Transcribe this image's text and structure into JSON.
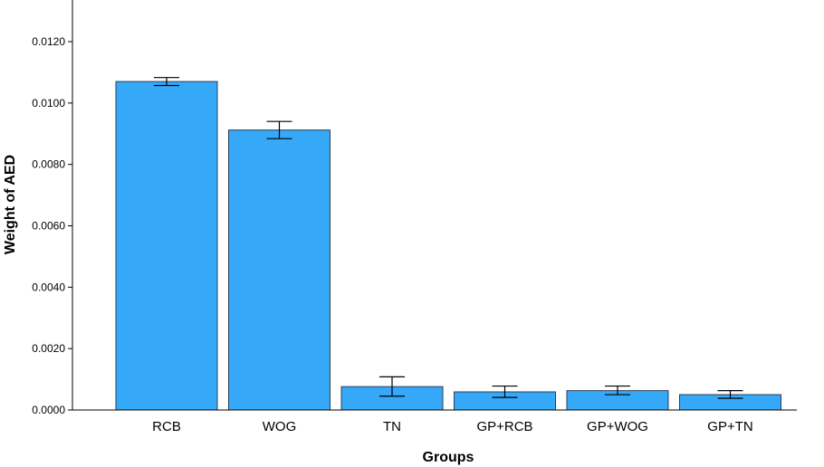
{
  "chart_data": {
    "type": "bar",
    "title": "",
    "xlabel": "Groups",
    "ylabel": "Weight of AED",
    "categories": [
      "RCB",
      "WOG",
      "TN",
      "GP+RCB",
      "GP+WOG",
      "GP+TN"
    ],
    "values": [
      0.0107,
      0.00912,
      0.00076,
      0.00059,
      0.00063,
      0.0005
    ],
    "error_low": [
      0.01057,
      0.00884,
      0.00045,
      0.00041,
      0.0005,
      0.00038
    ],
    "error_high": [
      0.01083,
      0.0094,
      0.00108,
      0.00078,
      0.00078,
      0.00063
    ],
    "ylim": [
      0,
      0.0135
    ],
    "yticks": [
      "0.0000",
      "0.0020",
      "0.0040",
      "0.0060",
      "0.0080",
      "0.0100",
      "0.0120"
    ],
    "ytick_values": [
      0,
      0.002,
      0.004,
      0.006,
      0.008,
      0.01,
      0.012
    ],
    "grid": false,
    "colors": {
      "bar_fill": "#35a9f8",
      "bar_stroke": "#2a3f55",
      "axis": "#000000"
    }
  }
}
